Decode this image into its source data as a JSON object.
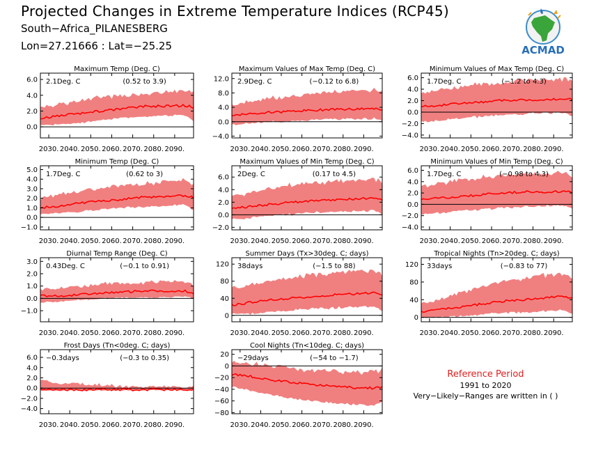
{
  "title": "Projected Changes in Extreme Temperature Indices (RCP45)",
  "subtitle": "South−Africa_PILANESBERG",
  "coords": "Lon=27.21666 : Lat=−25.25",
  "logo": {
    "text": "ACMAD",
    "icon": "africa-map-logo-icon"
  },
  "reference": {
    "title": "Reference Period",
    "years": "1991 to 2020",
    "note": "Very−Likely−Ranges are written in ( )"
  },
  "colors": {
    "band": "#f08080",
    "line": "#ff0000",
    "zero": "#000000",
    "ref_title": "#e02020"
  },
  "chart_data": [
    {
      "type": "area",
      "title": "Maximum Temp (Deg. C)",
      "value": "2.1Deg. C",
      "range": "(0.52 to 3.9)",
      "x_ticks": [
        "2030.",
        "2040.",
        "2050.",
        "2060.",
        "2070.",
        "2080.",
        "2090."
      ],
      "y_ticks": [
        "0.0",
        "2.0",
        "4.0",
        "6.0"
      ],
      "ylim": [
        -1.4,
        6.8
      ],
      "x": [
        2026,
        2035,
        2045,
        2055,
        2065,
        2075,
        2085,
        2095,
        2099
      ],
      "median": [
        1.1,
        1.4,
        1.7,
        2.0,
        2.3,
        2.6,
        2.6,
        2.7,
        2.5
      ],
      "low": [
        0.3,
        0.4,
        0.6,
        0.9,
        1.2,
        1.4,
        1.5,
        1.6,
        0.8
      ],
      "high": [
        2.4,
        2.7,
        3.2,
        3.6,
        3.8,
        4.0,
        4.2,
        4.4,
        4.2
      ]
    },
    {
      "type": "area",
      "title": "Maximum Values of Max Temp (Deg. C)",
      "value": "2.9Deg. C",
      "range": "(−0.12 to 6.8)",
      "x_ticks": [
        "2030.",
        "2040.",
        "2050.",
        "2060.",
        "2070.",
        "2080.",
        "2090."
      ],
      "y_ticks": [
        "−4.0",
        "0.0",
        "4.0",
        "8.0",
        "12.0"
      ],
      "ylim": [
        -4.5,
        13.5
      ],
      "x": [
        2026,
        2035,
        2045,
        2055,
        2065,
        2075,
        2085,
        2095,
        2099
      ],
      "median": [
        1.8,
        2.2,
        2.6,
        2.9,
        3.2,
        3.4,
        3.5,
        3.7,
        3.5
      ],
      "low": [
        -0.6,
        -0.3,
        0.2,
        0.4,
        0.7,
        0.9,
        1.0,
        1.2,
        0.5
      ],
      "high": [
        4.5,
        5.2,
        6.2,
        6.8,
        7.5,
        7.8,
        8.2,
        8.5,
        7.9
      ]
    },
    {
      "type": "area",
      "title": "Minimum Values of Max Temp (Deg. C)",
      "value": "1.7Deg. C",
      "range": "(−1.2 to 4.3)",
      "x_ticks": [
        "2030.",
        "2040.",
        "2050.",
        "2060.",
        "2070.",
        "2080.",
        "2090."
      ],
      "y_ticks": [
        "−4.0",
        "−2.0",
        "0.0",
        "2.0",
        "4.0",
        "6.0"
      ],
      "ylim": [
        -4.5,
        6.8
      ],
      "x": [
        2026,
        2035,
        2045,
        2055,
        2065,
        2075,
        2085,
        2095,
        2099
      ],
      "median": [
        1.0,
        1.2,
        1.5,
        1.7,
        2.0,
        2.1,
        2.2,
        2.3,
        2.2
      ],
      "low": [
        -1.4,
        -1.3,
        -0.9,
        -0.6,
        -0.3,
        -0.2,
        0.0,
        0.1,
        -0.6
      ],
      "high": [
        3.2,
        3.6,
        4.1,
        4.6,
        4.9,
        5.2,
        5.3,
        5.5,
        5.0
      ]
    },
    {
      "type": "area",
      "title": "Minimum Temp (Deg. C)",
      "value": "1.7Deg. C",
      "range": "(0.62 to 3)",
      "x_ticks": [
        "2030.",
        "2040.",
        "2050.",
        "2060.",
        "2070.",
        "2080.",
        "2090."
      ],
      "y_ticks": [
        "−1.0",
        "0.0",
        "1.0",
        "2.0",
        "3.0",
        "4.0",
        "5.0"
      ],
      "ylim": [
        -1.3,
        5.4
      ],
      "x": [
        2026,
        2035,
        2045,
        2055,
        2065,
        2075,
        2085,
        2095,
        2099
      ],
      "median": [
        1.0,
        1.2,
        1.5,
        1.7,
        1.9,
        2.1,
        2.2,
        2.3,
        2.1
      ],
      "low": [
        0.4,
        0.5,
        0.7,
        0.9,
        1.1,
        1.2,
        1.3,
        1.4,
        0.9
      ],
      "high": [
        1.9,
        2.3,
        2.7,
        3.0,
        3.2,
        3.4,
        3.6,
        3.8,
        3.4
      ]
    },
    {
      "type": "area",
      "title": "Maximum Values of Min Temp (Deg. C)",
      "value": "2Deg. C",
      "range": "(0.17 to 4.5)",
      "x_ticks": [
        "2030.",
        "2040.",
        "2050.",
        "2060.",
        "2070.",
        "2080.",
        "2090."
      ],
      "y_ticks": [
        "−2.0",
        "0.0",
        "2.0",
        "4.0",
        "6.0"
      ],
      "ylim": [
        -2.4,
        7.8
      ],
      "x": [
        2026,
        2035,
        2045,
        2055,
        2065,
        2075,
        2085,
        2095,
        2099
      ],
      "median": [
        1.0,
        1.3,
        1.7,
        2.0,
        2.2,
        2.4,
        2.5,
        2.6,
        2.4
      ],
      "low": [
        -0.6,
        -0.4,
        0.0,
        0.2,
        0.5,
        0.6,
        0.7,
        0.8,
        0.3
      ],
      "high": [
        2.8,
        3.3,
        3.9,
        4.5,
        4.8,
        5.0,
        5.2,
        5.4,
        4.9
      ]
    },
    {
      "type": "area",
      "title": "Minimum Values of Min Temp (Deg. C)",
      "value": "1.7Deg. C",
      "range": "(−0.98 to 4.3)",
      "x_ticks": [
        "2030.",
        "2040.",
        "2050.",
        "2060.",
        "2070.",
        "2080.",
        "2090."
      ],
      "y_ticks": [
        "−4.0",
        "−2.0",
        "0.0",
        "2.0",
        "4.0",
        "6.0"
      ],
      "ylim": [
        -4.5,
        6.8
      ],
      "x": [
        2026,
        2035,
        2045,
        2055,
        2065,
        2075,
        2085,
        2095,
        2099
      ],
      "median": [
        0.8,
        1.1,
        1.4,
        1.7,
        2.0,
        2.2,
        2.2,
        2.3,
        2.1
      ],
      "low": [
        -1.6,
        -1.4,
        -1.0,
        -0.7,
        -0.4,
        -0.3,
        -0.1,
        0.0,
        -0.7
      ],
      "high": [
        3.0,
        3.4,
        4.0,
        4.4,
        4.8,
        5.0,
        5.1,
        5.3,
        4.8
      ]
    },
    {
      "type": "area",
      "title": "Diurnal Temp Range (Deg. C)",
      "value": "0.43Deg. C",
      "range": "(−0.1 to 0.91)",
      "x_ticks": [
        "2030.",
        "2040.",
        "2050.",
        "2060.",
        "2070.",
        "2080.",
        "2090."
      ],
      "y_ticks": [
        "−1.0",
        "0.0",
        "1.0",
        "2.0",
        "3.0"
      ],
      "ylim": [
        -1.9,
        3.3
      ],
      "x": [
        2026,
        2035,
        2045,
        2055,
        2065,
        2075,
        2085,
        2095,
        2099
      ],
      "median": [
        0.2,
        0.2,
        0.3,
        0.4,
        0.5,
        0.6,
        0.6,
        0.6,
        0.4
      ],
      "low": [
        -0.3,
        -0.2,
        -0.1,
        0.0,
        0.1,
        0.1,
        0.1,
        0.2,
        0.0
      ],
      "high": [
        0.7,
        0.8,
        0.9,
        1.1,
        1.2,
        1.2,
        1.3,
        1.3,
        1.0
      ]
    },
    {
      "type": "area",
      "title": "Summer Days (Tx>30deg. C; days)",
      "value": "38days",
      "range": "(−1.5 to 88)",
      "x_ticks": [
        "2030.",
        "2040.",
        "2050.",
        "2060.",
        "2070.",
        "2080.",
        "2090."
      ],
      "y_ticks": [
        "0",
        "40",
        "80",
        "120"
      ],
      "ylim": [
        -15,
        135
      ],
      "x": [
        2026,
        2035,
        2045,
        2055,
        2065,
        2075,
        2085,
        2095,
        2099
      ],
      "median": [
        24,
        30,
        36,
        40,
        44,
        48,
        50,
        52,
        48
      ],
      "low": [
        4,
        6,
        10,
        14,
        18,
        20,
        22,
        24,
        14
      ],
      "high": [
        60,
        68,
        76,
        84,
        90,
        94,
        98,
        102,
        92
      ]
    },
    {
      "type": "area",
      "title": "Tropical Nights (Tn>20deg. C; days)",
      "value": "33days",
      "range": "(−0.83 to 77)",
      "x_ticks": [
        "2030.",
        "2040.",
        "2050.",
        "2060.",
        "2070.",
        "2080.",
        "2090."
      ],
      "y_ticks": [
        "0",
        "40",
        "80",
        "120"
      ],
      "ylim": [
        -10,
        135
      ],
      "x": [
        2026,
        2035,
        2045,
        2055,
        2065,
        2075,
        2085,
        2095,
        2099
      ],
      "median": [
        12,
        18,
        24,
        30,
        36,
        40,
        44,
        48,
        44
      ],
      "low": [
        0,
        2,
        4,
        8,
        12,
        14,
        16,
        18,
        10
      ],
      "high": [
        30,
        40,
        52,
        66,
        76,
        84,
        90,
        96,
        86
      ]
    },
    {
      "type": "area",
      "title": "Frost Days (Tn<0deg. C; days)",
      "value": "−0.3days",
      "range": "(−0.3 to 0.35)",
      "x_ticks": [
        "2030.",
        "2040.",
        "2050.",
        "2060.",
        "2070.",
        "2080.",
        "2090."
      ],
      "y_ticks": [
        "−4.0",
        "−2.0",
        "0.0",
        "2.0",
        "4.0",
        "6.0"
      ],
      "ylim": [
        -5.0,
        7.5
      ],
      "x": [
        2026,
        2035,
        2045,
        2055,
        2065,
        2075,
        2085,
        2095,
        2099
      ],
      "median": [
        -0.3,
        -0.3,
        -0.3,
        -0.3,
        -0.3,
        -0.3,
        -0.3,
        -0.3,
        -0.3
      ],
      "low": [
        -0.4,
        -0.4,
        -0.4,
        -0.4,
        -0.4,
        -0.4,
        -0.4,
        -0.4,
        -0.4
      ],
      "high": [
        1.6,
        0.9,
        0.8,
        0.6,
        0.3,
        0.2,
        0.2,
        0.2,
        0.2
      ]
    },
    {
      "type": "area",
      "title": "Cool Nights (Tn<10deg. C; days)",
      "value": "−29days",
      "range": "(−54 to −1.7)",
      "x_ticks": [
        "2030.",
        "2040.",
        "2050.",
        "2060.",
        "2070.",
        "2080.",
        "2090."
      ],
      "y_ticks": [
        "−80",
        "−60",
        "−40",
        "−20",
        "0",
        "20"
      ],
      "ylim": [
        -82,
        28
      ],
      "x": [
        2026,
        2035,
        2045,
        2055,
        2065,
        2075,
        2085,
        2095,
        2099
      ],
      "median": [
        -14,
        -18,
        -24,
        -28,
        -32,
        -35,
        -37,
        -38,
        -36
      ],
      "low": [
        -34,
        -40,
        -48,
        -54,
        -58,
        -62,
        -64,
        -66,
        -60
      ],
      "high": [
        6,
        2,
        -2,
        -6,
        -10,
        -12,
        -13,
        -14,
        -10
      ]
    }
  ]
}
